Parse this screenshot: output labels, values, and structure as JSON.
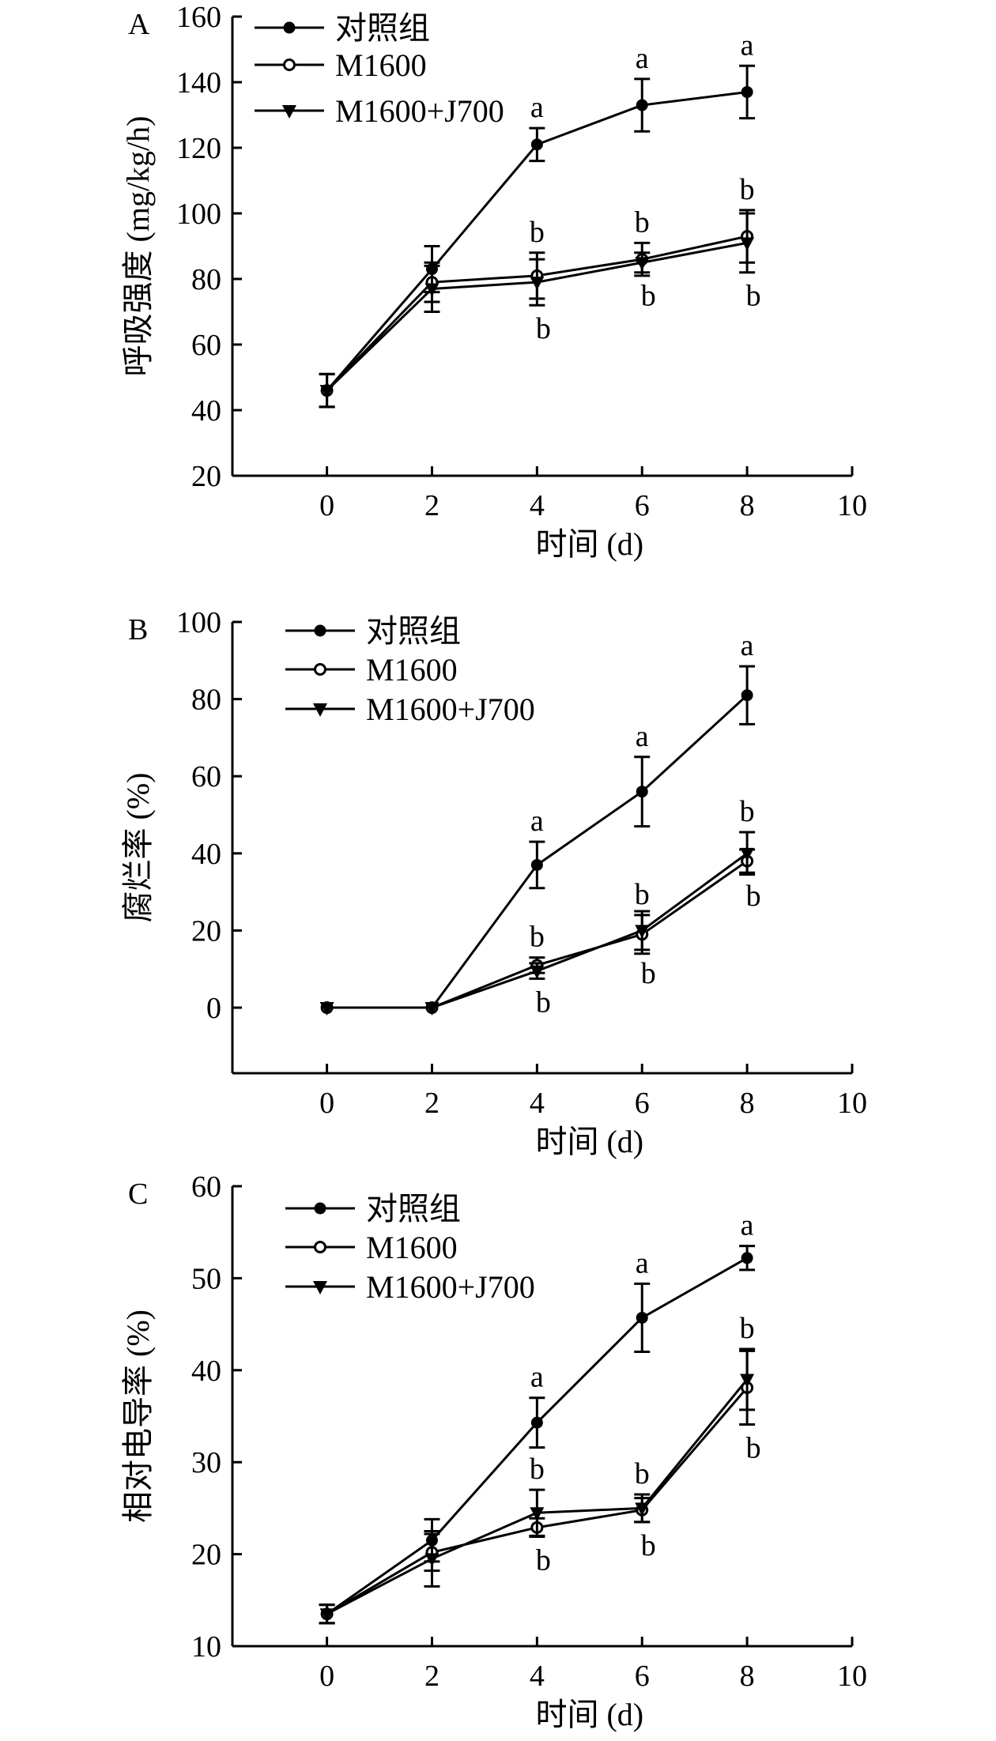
{
  "chart_data": [
    {
      "type": "line",
      "panel_label": "A",
      "xlabel": "时间 (d)",
      "ylabel": "呼吸强度 (mg/kg/h)",
      "xlim": [
        -1.8,
        10
      ],
      "ylim": [
        20,
        160
      ],
      "xticks": [
        0,
        2,
        4,
        6,
        8,
        10
      ],
      "yticks": [
        20,
        40,
        60,
        80,
        100,
        120,
        140,
        160
      ],
      "x": [
        0,
        2,
        4,
        6,
        8
      ],
      "legend_position": "top-left",
      "series": [
        {
          "name": "对照组",
          "marker": "filled-circle",
          "values": [
            46,
            83,
            121,
            133,
            137
          ],
          "errors": [
            5,
            7,
            5,
            8,
            8
          ],
          "letters": [
            null,
            null,
            {
              "text": "a",
              "side": "above"
            },
            {
              "text": "a",
              "side": "above"
            },
            {
              "text": "a",
              "side": "above"
            }
          ]
        },
        {
          "name": "M1600",
          "marker": "open-circle",
          "values": [
            46,
            79,
            81,
            86,
            93
          ],
          "errors": [
            5,
            6,
            7,
            5,
            8
          ],
          "letters": [
            null,
            null,
            {
              "text": "b",
              "side": "above"
            },
            {
              "text": "b",
              "side": "above"
            },
            {
              "text": "b",
              "side": "above"
            }
          ]
        },
        {
          "name": "M1600+J700",
          "marker": "down-triangle",
          "values": [
            46,
            77,
            79,
            85,
            91
          ],
          "errors": [
            5,
            7,
            7,
            3,
            9
          ],
          "letters": [
            null,
            null,
            {
              "text": "b",
              "side": "below"
            },
            {
              "text": "b",
              "side": "below"
            },
            {
              "text": "b",
              "side": "below"
            }
          ]
        }
      ]
    },
    {
      "type": "line",
      "panel_label": "B",
      "xlabel": "时间 (d)",
      "ylabel": "腐烂率 (%)",
      "xlim": [
        -1.8,
        10
      ],
      "ylim": [
        -17,
        100
      ],
      "xticks": [
        0,
        2,
        4,
        6,
        8,
        10
      ],
      "yticks": [
        0,
        20,
        40,
        60,
        80,
        100
      ],
      "x": [
        0,
        2,
        4,
        6,
        8
      ],
      "legend_position": "top-left",
      "series": [
        {
          "name": "对照组",
          "marker": "filled-circle",
          "values": [
            0,
            0,
            37,
            56,
            81
          ],
          "errors": [
            0,
            0,
            6,
            9,
            7.5
          ],
          "letters": [
            null,
            null,
            {
              "text": "a",
              "side": "above"
            },
            {
              "text": "a",
              "side": "above"
            },
            {
              "text": "a",
              "side": "above"
            }
          ]
        },
        {
          "name": "M1600",
          "marker": "open-circle",
          "values": [
            0,
            0,
            11,
            19,
            38
          ],
          "errors": [
            0,
            0,
            2,
            5,
            3
          ],
          "letters": [
            null,
            null,
            {
              "text": "b",
              "side": "above"
            },
            {
              "text": "b",
              "side": "above"
            },
            {
              "text": "b",
              "side": "below"
            }
          ]
        },
        {
          "name": "M1600+J700",
          "marker": "down-triangle",
          "values": [
            0,
            0,
            9.5,
            20,
            40
          ],
          "errors": [
            0,
            0,
            2,
            5,
            5.5
          ],
          "letters": [
            null,
            null,
            {
              "text": "b",
              "side": "below"
            },
            {
              "text": "b",
              "side": "below"
            },
            {
              "text": "b",
              "side": "above"
            }
          ]
        }
      ]
    },
    {
      "type": "line",
      "panel_label": "C",
      "xlabel": "时间 (d)",
      "ylabel": "相对电导率 (%)",
      "xlim": [
        -1.8,
        10
      ],
      "ylim": [
        10,
        60
      ],
      "xticks": [
        0,
        2,
        4,
        6,
        8,
        10
      ],
      "yticks": [
        10,
        20,
        30,
        40,
        50,
        60
      ],
      "x": [
        0,
        2,
        4,
        6,
        8
      ],
      "legend_position": "top-left",
      "series": [
        {
          "name": "对照组",
          "marker": "filled-circle",
          "values": [
            13.5,
            21.5,
            34.3,
            45.7,
            52.2
          ],
          "errors": [
            1,
            2.3,
            2.7,
            3.7,
            1.3
          ],
          "letters": [
            null,
            null,
            {
              "text": "a",
              "side": "above"
            },
            {
              "text": "a",
              "side": "above"
            },
            {
              "text": "a",
              "side": "above"
            }
          ]
        },
        {
          "name": "M1600",
          "marker": "open-circle",
          "values": [
            13.5,
            20.2,
            22.9,
            24.8,
            38.1
          ],
          "errors": [
            1,
            2,
            1,
            1.3,
            4
          ],
          "letters": [
            null,
            null,
            {
              "text": "b",
              "side": "below"
            },
            {
              "text": "b",
              "side": "below"
            },
            {
              "text": "b",
              "side": "below"
            }
          ]
        },
        {
          "name": "M1600+J700",
          "marker": "down-triangle",
          "values": [
            13.5,
            19.5,
            24.5,
            25,
            39
          ],
          "errors": [
            1,
            3,
            2.5,
            1.5,
            3.3
          ],
          "letters": [
            null,
            null,
            {
              "text": "b",
              "side": "above"
            },
            {
              "text": "b",
              "side": "above"
            },
            {
              "text": "b",
              "side": "above"
            }
          ]
        }
      ]
    }
  ]
}
